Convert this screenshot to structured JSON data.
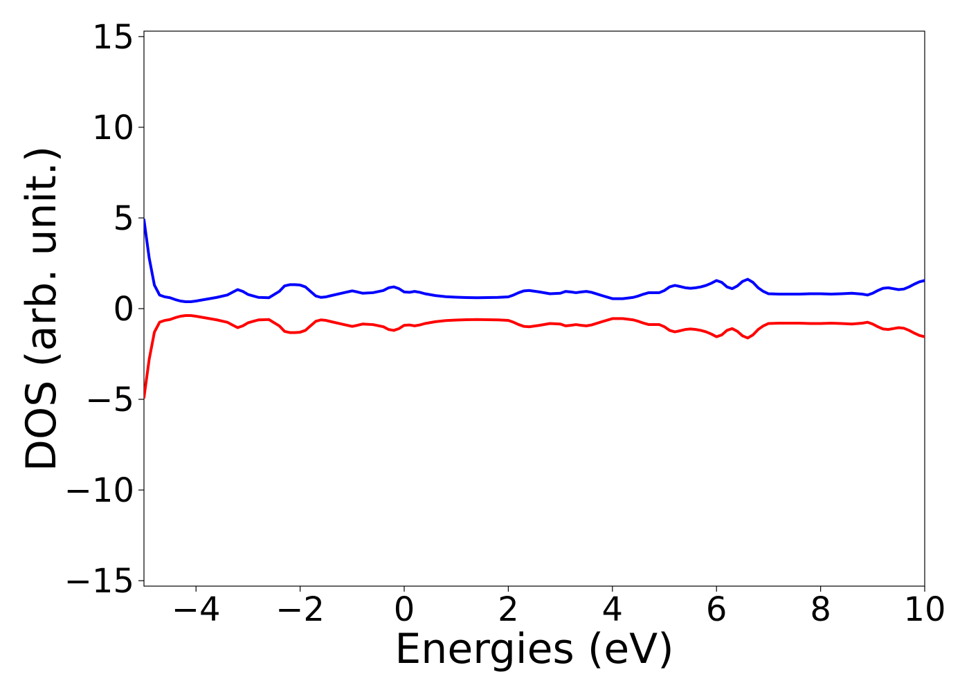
{
  "chart_data": {
    "type": "line",
    "xlabel": "Energies (eV)",
    "ylabel": "DOS (arb. unit.)",
    "xlim": [
      -5,
      10
    ],
    "ylim": [
      -15.3,
      15.3
    ],
    "xticks": [
      -4,
      -2,
      0,
      2,
      4,
      6,
      8,
      10
    ],
    "xtick_labels": [
      "−4",
      "−2",
      "0",
      "2",
      "4",
      "6",
      "8",
      "10"
    ],
    "yticks": [
      -15,
      -10,
      -5,
      0,
      5,
      10,
      15
    ],
    "ytick_labels": [
      "−15",
      "−10",
      "−5",
      "0",
      "5",
      "10",
      "15"
    ],
    "grid": false,
    "legend": "none",
    "series": [
      {
        "color": "#0000ff",
        "x": [
          -5.0,
          -4.9,
          -4.8,
          -4.7,
          -4.6,
          -4.5,
          -4.4,
          -4.3,
          -4.2,
          -4.1,
          -4.0,
          -3.8,
          -3.6,
          -3.4,
          -3.3,
          -3.2,
          -3.1,
          -3.0,
          -2.9,
          -2.8,
          -2.6,
          -2.4,
          -2.3,
          -2.2,
          -2.1,
          -2.0,
          -1.9,
          -1.8,
          -1.7,
          -1.6,
          -1.5,
          -1.4,
          -1.2,
          -1.0,
          -0.9,
          -0.8,
          -0.6,
          -0.4,
          -0.3,
          -0.2,
          -0.1,
          0.0,
          0.1,
          0.2,
          0.3,
          0.4,
          0.6,
          0.8,
          1.0,
          1.2,
          1.4,
          1.6,
          1.8,
          2.0,
          2.1,
          2.2,
          2.3,
          2.4,
          2.6,
          2.8,
          3.0,
          3.1,
          3.2,
          3.3,
          3.4,
          3.5,
          3.6,
          3.8,
          4.0,
          4.2,
          4.4,
          4.5,
          4.6,
          4.7,
          4.8,
          4.9,
          5.0,
          5.1,
          5.2,
          5.3,
          5.4,
          5.5,
          5.6,
          5.7,
          5.8,
          5.9,
          6.0,
          6.1,
          6.2,
          6.3,
          6.4,
          6.5,
          6.6,
          6.7,
          6.8,
          6.9,
          7.0,
          7.2,
          7.4,
          7.6,
          7.8,
          8.0,
          8.2,
          8.4,
          8.6,
          8.8,
          8.9,
          9.0,
          9.1,
          9.2,
          9.3,
          9.4,
          9.5,
          9.6,
          9.7,
          9.8,
          9.9,
          10.0
        ],
        "y": [
          4.9,
          2.8,
          1.3,
          0.75,
          0.65,
          0.6,
          0.5,
          0.42,
          0.38,
          0.38,
          0.42,
          0.52,
          0.62,
          0.75,
          0.9,
          1.05,
          0.95,
          0.78,
          0.7,
          0.62,
          0.6,
          0.95,
          1.25,
          1.32,
          1.32,
          1.3,
          1.2,
          0.95,
          0.7,
          0.62,
          0.65,
          0.72,
          0.85,
          0.98,
          0.92,
          0.85,
          0.88,
          1.0,
          1.15,
          1.2,
          1.1,
          0.92,
          0.9,
          0.95,
          0.9,
          0.82,
          0.72,
          0.66,
          0.63,
          0.61,
          0.6,
          0.61,
          0.62,
          0.65,
          0.75,
          0.88,
          0.98,
          1.0,
          0.92,
          0.82,
          0.85,
          0.95,
          0.92,
          0.88,
          0.92,
          0.95,
          0.9,
          0.72,
          0.55,
          0.55,
          0.62,
          0.7,
          0.8,
          0.88,
          0.88,
          0.88,
          1.0,
          1.2,
          1.28,
          1.22,
          1.15,
          1.12,
          1.15,
          1.2,
          1.28,
          1.4,
          1.55,
          1.45,
          1.2,
          1.1,
          1.25,
          1.5,
          1.62,
          1.45,
          1.15,
          0.95,
          0.82,
          0.8,
          0.8,
          0.8,
          0.82,
          0.82,
          0.8,
          0.82,
          0.85,
          0.8,
          0.75,
          0.85,
          1.0,
          1.12,
          1.15,
          1.1,
          1.05,
          1.08,
          1.2,
          1.35,
          1.48,
          1.55
        ]
      },
      {
        "color": "#ff0000",
        "x": [
          -5.0,
          -4.9,
          -4.8,
          -4.7,
          -4.6,
          -4.5,
          -4.4,
          -4.3,
          -4.2,
          -4.1,
          -4.0,
          -3.8,
          -3.6,
          -3.4,
          -3.3,
          -3.2,
          -3.1,
          -3.0,
          -2.9,
          -2.8,
          -2.6,
          -2.4,
          -2.3,
          -2.2,
          -2.1,
          -2.0,
          -1.9,
          -1.8,
          -1.7,
          -1.6,
          -1.5,
          -1.4,
          -1.2,
          -1.0,
          -0.9,
          -0.8,
          -0.6,
          -0.4,
          -0.3,
          -0.2,
          -0.1,
          0.0,
          0.1,
          0.2,
          0.3,
          0.4,
          0.6,
          0.8,
          1.0,
          1.2,
          1.4,
          1.6,
          1.8,
          2.0,
          2.1,
          2.2,
          2.3,
          2.4,
          2.6,
          2.8,
          3.0,
          3.1,
          3.2,
          3.3,
          3.4,
          3.5,
          3.6,
          3.8,
          4.0,
          4.2,
          4.4,
          4.5,
          4.6,
          4.7,
          4.8,
          4.9,
          5.0,
          5.1,
          5.2,
          5.3,
          5.4,
          5.5,
          5.6,
          5.7,
          5.8,
          5.9,
          6.0,
          6.1,
          6.2,
          6.3,
          6.4,
          6.5,
          6.6,
          6.7,
          6.8,
          6.9,
          7.0,
          7.2,
          7.4,
          7.6,
          7.8,
          8.0,
          8.2,
          8.4,
          8.6,
          8.8,
          8.9,
          9.0,
          9.1,
          9.2,
          9.3,
          9.4,
          9.5,
          9.6,
          9.7,
          9.8,
          9.9,
          10.0
        ],
        "y": [
          -4.9,
          -2.8,
          -1.3,
          -0.75,
          -0.65,
          -0.6,
          -0.5,
          -0.42,
          -0.38,
          -0.38,
          -0.42,
          -0.52,
          -0.62,
          -0.75,
          -0.9,
          -1.05,
          -0.95,
          -0.78,
          -0.7,
          -0.62,
          -0.6,
          -0.95,
          -1.25,
          -1.32,
          -1.32,
          -1.3,
          -1.2,
          -0.95,
          -0.7,
          -0.62,
          -0.65,
          -0.72,
          -0.85,
          -0.98,
          -0.92,
          -0.85,
          -0.88,
          -1.0,
          -1.15,
          -1.2,
          -1.1,
          -0.92,
          -0.9,
          -0.95,
          -0.9,
          -0.82,
          -0.72,
          -0.66,
          -0.63,
          -0.61,
          -0.6,
          -0.61,
          -0.62,
          -0.65,
          -0.75,
          -0.88,
          -0.98,
          -1.0,
          -0.92,
          -0.82,
          -0.85,
          -0.95,
          -0.92,
          -0.88,
          -0.92,
          -0.95,
          -0.9,
          -0.72,
          -0.55,
          -0.55,
          -0.62,
          -0.7,
          -0.8,
          -0.88,
          -0.88,
          -0.88,
          -1.0,
          -1.2,
          -1.28,
          -1.22,
          -1.15,
          -1.12,
          -1.15,
          -1.2,
          -1.28,
          -1.4,
          -1.55,
          -1.45,
          -1.2,
          -1.1,
          -1.25,
          -1.5,
          -1.62,
          -1.45,
          -1.15,
          -0.95,
          -0.82,
          -0.8,
          -0.8,
          -0.8,
          -0.82,
          -0.82,
          -0.8,
          -0.82,
          -0.85,
          -0.8,
          -0.75,
          -0.85,
          -1.0,
          -1.12,
          -1.15,
          -1.1,
          -1.05,
          -1.08,
          -1.2,
          -1.35,
          -1.48,
          -1.55
        ]
      }
    ]
  }
}
